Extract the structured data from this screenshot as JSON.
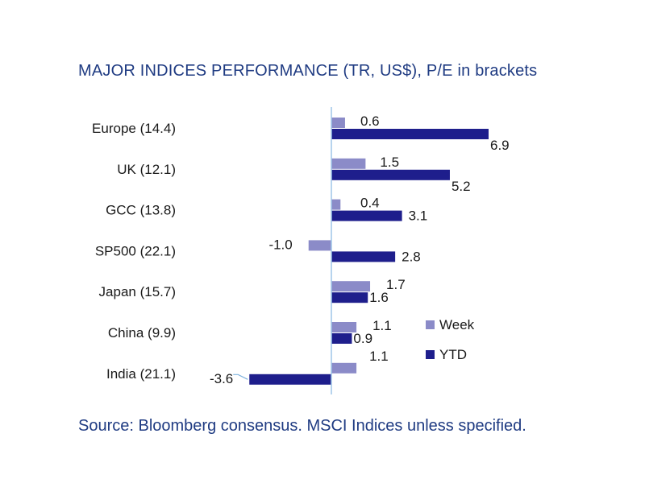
{
  "chart_data": {
    "type": "bar",
    "orientation": "horizontal",
    "title": "MAJOR INDICES PERFORMANCE (TR, US$), P/E in brackets",
    "categories": [
      "Europe (14.4)",
      "UK (12.1)",
      "GCC (13.8)",
      "SP500 (22.1)",
      "Japan (15.7)",
      "China (9.9)",
      "India (21.1)"
    ],
    "series": [
      {
        "name": "Week",
        "values": [
          0.6,
          1.5,
          0.4,
          -1.0,
          1.7,
          1.1,
          1.1
        ],
        "value_labels": [
          "0.6",
          "1.5",
          "0.4",
          "-1.0",
          "1.7",
          "1.1",
          "1.1"
        ],
        "color": "#8b8bc8"
      },
      {
        "name": "YTD",
        "values": [
          6.9,
          5.2,
          3.1,
          2.8,
          1.6,
          0.9,
          -3.6
        ],
        "value_labels": [
          "6.9",
          "5.2",
          "3.1",
          "2.8",
          "1.6",
          "0.9",
          "-3.6"
        ],
        "color": "#1e1e8c"
      }
    ],
    "xlim": [
      -3.6,
      6.9
    ],
    "legend_position": "right",
    "grid": false,
    "xlabel": "",
    "ylabel": ""
  },
  "source": "Source: Bloomberg consensus. MSCI Indices unless specified."
}
